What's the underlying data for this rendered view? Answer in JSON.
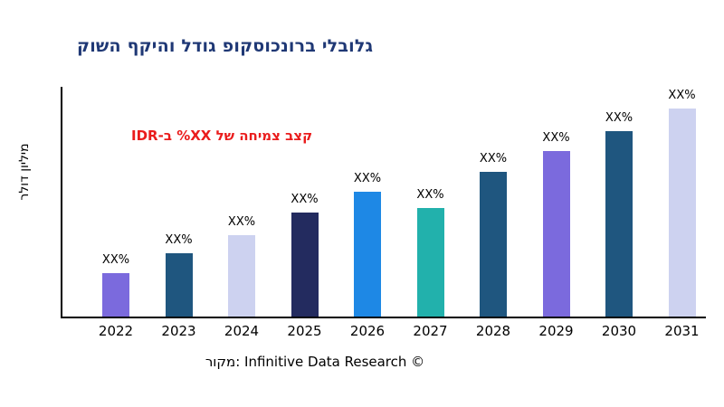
{
  "colors": {
    "background": "#ffffff",
    "title": "#1f3875",
    "annotation": "#ea1c1c",
    "axis": "#000000",
    "text": "#000000"
  },
  "chart_data": {
    "type": "bar",
    "title": "גלובלי ברונכוסקופ גודל והיקף השוק",
    "annotation": "קצב צמיחה של XX% ב-IDR",
    "ylabel": "מיליון דולר",
    "xlabel": "",
    "source": "מקור: Infinitive Data Research ©",
    "categories": [
      "2022",
      "2023",
      "2024",
      "2025",
      "2026",
      "2027",
      "2028",
      "2029",
      "2030",
      "2031"
    ],
    "values": [
      19,
      28,
      36,
      46,
      55,
      48,
      64,
      73,
      82,
      92
    ],
    "value_labels": [
      "XX%",
      "XX%",
      "XX%",
      "XX%",
      "XX%",
      "XX%",
      "XX%",
      "XX%",
      "XX%",
      "XX%"
    ],
    "bar_colors": [
      "#7b6add",
      "#1f567f",
      "#cdd2f0",
      "#232b5f",
      "#1e88e5",
      "#22b1ac",
      "#1f567f",
      "#7b6add",
      "#1f567f",
      "#cdd2f0"
    ],
    "ylim": [
      0,
      100
    ],
    "grid": false,
    "legend_position": "none"
  }
}
